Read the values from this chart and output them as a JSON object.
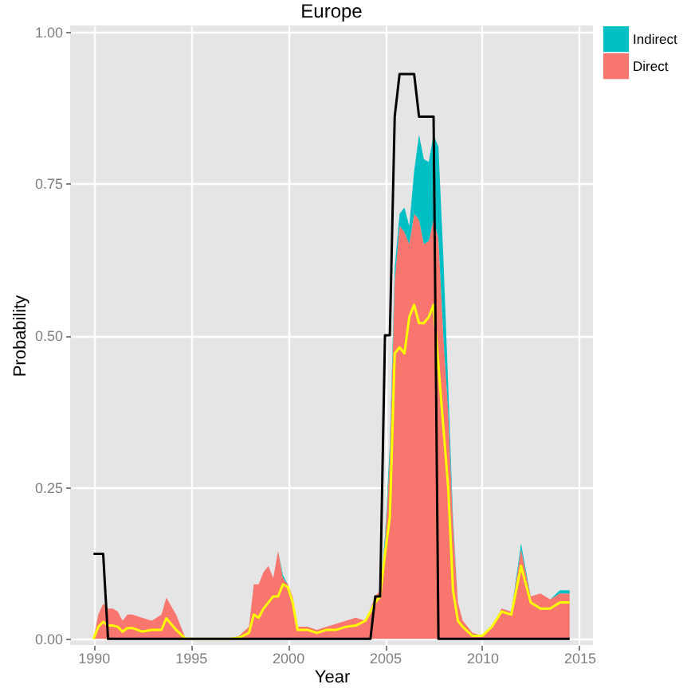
{
  "chart_data": {
    "type": "area",
    "title": "Europe",
    "xlabel": "Year",
    "ylabel": "Probability",
    "stacked": true,
    "legend": "right",
    "grid": true,
    "x": [
      1990,
      1990.25,
      1990.5,
      1990.75,
      1991,
      1991.25,
      1991.5,
      1991.75,
      1992,
      1992.5,
      1993,
      1993.5,
      1993.75,
      1994.25,
      1994.75,
      1995,
      1996,
      1997,
      1997.5,
      1998,
      1998.25,
      1998.5,
      1998.75,
      1999,
      1999.25,
      1999.5,
      1999.75,
      2000,
      2000.25,
      2000.5,
      2001,
      2001.5,
      2002,
      2002.5,
      2003,
      2003.5,
      2004,
      2004.5,
      2004.75,
      2005,
      2005.25,
      2005.5,
      2005.75,
      2006,
      2006.25,
      2006.5,
      2006.75,
      2007,
      2007.25,
      2007.5,
      2007.75,
      2008,
      2008.25,
      2008.5,
      2008.75,
      2009,
      2009.5,
      2010,
      2010.5,
      2011,
      2011.5,
      2012,
      2012.5,
      2013,
      2013.5,
      2014,
      2014.5
    ],
    "series": [
      {
        "name": "Direct",
        "color": "#f8766d",
        "values": [
          0,
          0.04,
          0.058,
          0.05,
          0.05,
          0.045,
          0.03,
          0.04,
          0.04,
          0.035,
          0.03,
          0.04,
          0.068,
          0.04,
          0,
          0,
          0,
          0,
          0.005,
          0.02,
          0.09,
          0.09,
          0.11,
          0.12,
          0.1,
          0.145,
          0.1,
          0.09,
          0.07,
          0.02,
          0.02,
          0.015,
          0.02,
          0.025,
          0.03,
          0.035,
          0.03,
          0.07,
          0.08,
          0.16,
          0.3,
          0.59,
          0.68,
          0.67,
          0.65,
          0.7,
          0.69,
          0.65,
          0.655,
          0.69,
          0.66,
          0.5,
          0.375,
          0.19,
          0.06,
          0.03,
          0.01,
          0.005,
          0.02,
          0.05,
          0.045,
          0.148,
          0.07,
          0.075,
          0.065,
          0.075,
          0.075
        ]
      },
      {
        "name": "Indirect",
        "color": "#00bfc4",
        "values": [
          0,
          0,
          0,
          0,
          0,
          0,
          0,
          0,
          0,
          0,
          0,
          0,
          0,
          0,
          0,
          0,
          0,
          0,
          0,
          0,
          0,
          0,
          0,
          0,
          0,
          0,
          0.005,
          0,
          0,
          0,
          0,
          0,
          0,
          0,
          0,
          0,
          0,
          0,
          0,
          0.01,
          0.02,
          0.02,
          0.02,
          0.04,
          0.03,
          0.07,
          0.14,
          0.14,
          0.13,
          0.14,
          0.15,
          0.13,
          0.045,
          0.01,
          0,
          0,
          0,
          0,
          0,
          0,
          0,
          0.009,
          0,
          0,
          0,
          0.005,
          0.005
        ]
      },
      {
        "type": "line",
        "color": "#ffff00",
        "values": [
          0,
          0.02,
          0.028,
          0.022,
          0.022,
          0.02,
          0.012,
          0.018,
          0.018,
          0.012,
          0.015,
          0.015,
          0.034,
          0.015,
          0,
          0,
          0,
          0,
          0.002,
          0.01,
          0.04,
          0.035,
          0.05,
          0.06,
          0.07,
          0.07,
          0.09,
          0.085,
          0.06,
          0.015,
          0.015,
          0.01,
          0.015,
          0.015,
          0.02,
          0.022,
          0.03,
          0.06,
          0.07,
          0.14,
          0.2,
          0.47,
          0.48,
          0.47,
          0.53,
          0.55,
          0.52,
          0.52,
          0.53,
          0.55,
          0.45,
          0.35,
          0.25,
          0.08,
          0.03,
          0.02,
          0.005,
          0.005,
          0.02,
          0.045,
          0.04,
          0.12,
          0.06,
          0.05,
          0.05,
          0.06,
          0.06
        ]
      },
      {
        "type": "line",
        "color": "#000000",
        "x": [
          1990,
          1990.5,
          1990.75,
          2004.25,
          2004.5,
          2004.75,
          2005,
          2005.25,
          2005.5,
          2005.75,
          2006.5,
          2006.75,
          2007.5,
          2007.75,
          2014.5
        ],
        "values": [
          0.14,
          0.14,
          0,
          0,
          0.07,
          0.07,
          0.5,
          0.5,
          0.86,
          0.93,
          0.93,
          0.86,
          0.86,
          0,
          0
        ]
      }
    ],
    "xlim": [
      1988.8,
      2015.7
    ],
    "xticks": [
      1990,
      1995,
      2000,
      2005,
      2010,
      2015
    ],
    "ylim": [
      -0.01,
      1.01
    ],
    "yticks": [
      {
        "value": 0,
        "label": "0.00"
      },
      {
        "value": 0.25,
        "label": "0.25"
      },
      {
        "value": 0.5,
        "label": "0.50"
      },
      {
        "value": 0.75,
        "label": "0.75"
      },
      {
        "value": 1,
        "label": "1.00"
      }
    ]
  }
}
